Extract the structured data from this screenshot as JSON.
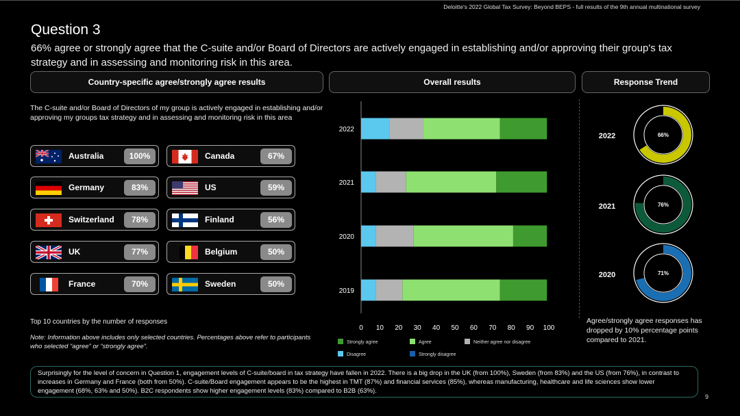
{
  "header": {
    "source": "Deloitte's 2022 Global Tax Survey: Beyond BEPS  - full results of the 9th annual multinational survey"
  },
  "title": "Question 3",
  "subtitle": "66% agree or strongly agree that the C-suite and/or Board of Directors are actively engaged in establishing and/or approving their group's tax strategy and in assessing and monitoring risk in this area.",
  "sections": {
    "country": "Country-specific agree/strongly agree results",
    "overall": "Overall results",
    "trend": "Response Trend"
  },
  "country_panel": {
    "description": "The C-suite and/or Board of Directors of my group is actively engaged in establishing and/or approving my groups tax strategy and in assessing and monitoring risk in this area",
    "countries": [
      {
        "name": "Australia",
        "pct": "100%"
      },
      {
        "name": "Canada",
        "pct": "67%"
      },
      {
        "name": "Germany",
        "pct": "83%"
      },
      {
        "name": "US",
        "pct": "59%"
      },
      {
        "name": "Switzerland",
        "pct": "78%"
      },
      {
        "name": "Finland",
        "pct": "56%"
      },
      {
        "name": "UK",
        "pct": "77%"
      },
      {
        "name": "Belgium",
        "pct": "50%"
      },
      {
        "name": "France",
        "pct": "70%"
      },
      {
        "name": "Sweden",
        "pct": "50%"
      }
    ],
    "top10": "Top 10 countries by the number of responses",
    "note": "Note: Information above includes only selected countries. Percentages above refer to participants who selected “agree” or “strongly agree”."
  },
  "trend": {
    "items": [
      {
        "year": "2022",
        "value": 66,
        "label": "66%",
        "color": "#c9c800"
      },
      {
        "year": "2021",
        "value": 76,
        "label": "76%",
        "color": "#0d5a3a"
      },
      {
        "year": "2020",
        "value": 71,
        "label": "71%",
        "color": "#1a6fb4"
      }
    ],
    "text": "Agree/strongly agree responses has dropped by 10% percentage points compared to 2021."
  },
  "chart_data": {
    "type": "bar",
    "orientation": "horizontal",
    "stacked": true,
    "categories": [
      "2022",
      "2021",
      "2020",
      "2019"
    ],
    "series": [
      {
        "name": "Disagree",
        "color": "#5bc8ee",
        "values": [
          15,
          8,
          8,
          8
        ]
      },
      {
        "name": "Neither agree nor disagree",
        "color": "#b3b3b3",
        "values": [
          18,
          16,
          20,
          14
        ]
      },
      {
        "name": "Agree",
        "color": "#8ee070",
        "values": [
          41,
          48,
          53,
          52
        ]
      },
      {
        "name": "Strongly agree",
        "color": "#3f9b2f",
        "values": [
          25,
          27,
          18,
          25
        ]
      },
      {
        "name": "Strongly disagree",
        "color": "#1a5fa8",
        "values": [
          0,
          0,
          0,
          0
        ]
      }
    ],
    "xlim": [
      0,
      100
    ],
    "xticks": [
      "0",
      "10",
      "20",
      "30",
      "40",
      "50",
      "60",
      "70",
      "80",
      "90",
      "100"
    ],
    "legend": [
      "Strongly agree",
      "Agree",
      "Neither agree nor disagree",
      "Disagree",
      "Strongly disagree"
    ],
    "legend_position": "bottom"
  },
  "bottom_text": "Surprisingly for the level of concern in Question 1, engagement levels of C-suite/board in tax strategy have fallen in 2022. There is a big drop in the UK (from 100%), Sweden (from 83%) and the US (from 76%), in contrast to increases in Germany and France (both from 50%). C-suite/Board engagement appears to be the highest in TMT (87%) and financial services (85%), whereas manufacturing, healthcare and life sciences show lower engagement (68%, 63% and 50%). B2C respondents show higher engagement levels (83%) compared to B2B (63%).",
  "page_number": "9"
}
